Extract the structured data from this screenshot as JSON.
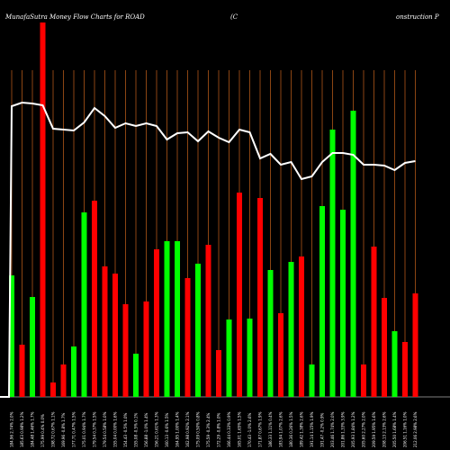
{
  "header": {
    "title_left": "MunafaSutra  Money Flow  Charts for ROAD",
    "title_mid": "(C",
    "title_right": "onstruction  P"
  },
  "colors": {
    "background": "#000000",
    "up": "#00ff00",
    "down": "#ff0000",
    "line": "#ffffff",
    "grid": "#8b4513"
  },
  "chart_data": {
    "type": "bar",
    "note_line": "price line overlay",
    "bars": [
      {
        "dir": "up",
        "value": 135
      },
      {
        "dir": "down",
        "value": 58
      },
      {
        "dir": "up",
        "value": 111
      },
      {
        "dir": "down",
        "value": 416
      },
      {
        "dir": "down",
        "value": 16
      },
      {
        "dir": "down",
        "value": 36
      },
      {
        "dir": "up",
        "value": 56
      },
      {
        "dir": "up",
        "value": 205
      },
      {
        "dir": "down",
        "value": 218
      },
      {
        "dir": "down",
        "value": 145
      },
      {
        "dir": "down",
        "value": 137
      },
      {
        "dir": "down",
        "value": 103
      },
      {
        "dir": "up",
        "value": 48
      },
      {
        "dir": "down",
        "value": 106
      },
      {
        "dir": "down",
        "value": 164
      },
      {
        "dir": "up",
        "value": 173
      },
      {
        "dir": "up",
        "value": 173
      },
      {
        "dir": "down",
        "value": 132
      },
      {
        "dir": "up",
        "value": 148
      },
      {
        "dir": "down",
        "value": 169
      },
      {
        "dir": "down",
        "value": 52
      },
      {
        "dir": "up",
        "value": 86
      },
      {
        "dir": "down",
        "value": 227
      },
      {
        "dir": "up",
        "value": 87
      },
      {
        "dir": "down",
        "value": 221
      },
      {
        "dir": "up",
        "value": 141
      },
      {
        "dir": "down",
        "value": 93
      },
      {
        "dir": "up",
        "value": 150
      },
      {
        "dir": "down",
        "value": 156
      },
      {
        "dir": "up",
        "value": 36
      },
      {
        "dir": "up",
        "value": 212
      },
      {
        "dir": "up",
        "value": 297
      },
      {
        "dir": "up",
        "value": 208
      },
      {
        "dir": "up",
        "value": 318
      },
      {
        "dir": "down",
        "value": 36
      },
      {
        "dir": "down",
        "value": 167
      },
      {
        "dir": "down",
        "value": 110
      },
      {
        "dir": "up",
        "value": 73
      },
      {
        "dir": "down",
        "value": 61
      },
      {
        "dir": "down",
        "value": 115
      }
    ],
    "price_line": [
      118,
      114,
      115,
      117,
      143,
      144,
      145,
      136,
      120,
      129,
      142,
      137,
      140,
      137,
      140,
      155,
      148,
      147,
      157,
      146,
      153,
      158,
      144,
      147,
      176,
      171,
      183,
      180,
      199,
      196,
      180,
      170,
      170,
      172,
      183,
      183,
      184,
      189,
      181,
      179
    ],
    "x_tick_labels": [
      "184.96 2.74% 2.0%",
      "185.63 0.98% 1.2%",
      "184.48 1.46% 1.7%",
      "175.99 0.4% 0.0%",
      "198.72 0.67% 1.1%",
      "169.96 -0.8% 1.7%",
      "177.71 0.47% 1.5%",
      "175.01 0.94% 1.7%",
      "179.54 0.37% 1.5%",
      "179.54 0.58% 1.0%",
      "155.04 0.00% 1.6%",
      "154.43 -0.5% 1.0%",
      "155.08 -0.5% 0.1%",
      "156.88 -1.0% 1.4%",
      "156.21 0.61% 1.3%",
      "160.13 -0.6% 1.5%",
      "164.95 1.00% 1.4%",
      "162.98 0.92% 2.1%",
      "175.09 0.50% 0.8%",
      "175.59 -0.3% 2.4%",
      "172.29 -0.8% 1.0%",
      "166.44 0.33% 0.9%",
      "165.01 1.65% 1.5%",
      "170.43 -1.0% 2.6%",
      "171.87 0.67% 1.9%",
      "186.33 1.11% 0.4%",
      "183.94 1.07% 2.6%",
      "180.36 0.26% 1.5%",
      "189.42 1.38% 2.6%",
      "191.14 1.15% 1.9%",
      "191.47 -0.2% 0.9%",
      "203.46 1.74% 2.0%",
      "201.86 1.33% 3.9%",
      "205.93 1.84% 1.2%",
      "205.60 2.27% 2.0%",
      "209.59 1.95% 1.6%",
      "208.13 2.13% 2.6%",
      "205.50 1.68% 1.4%",
      "206.51 1.16% 1.0%",
      "212.06 2.98% 2.6%"
    ]
  }
}
